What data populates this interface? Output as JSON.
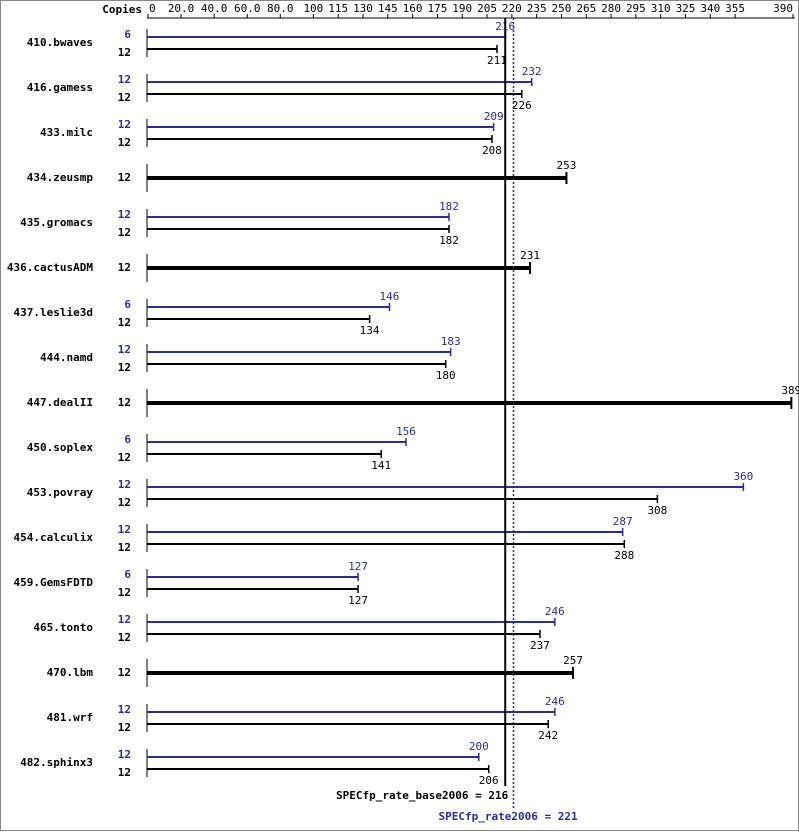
{
  "chart_data": {
    "type": "bar",
    "copies_title": "Copies",
    "categories": [
      "410.bwaves",
      "416.gamess",
      "433.milc",
      "434.zeusmp",
      "435.gromacs",
      "436.cactusADM",
      "437.leslie3d",
      "444.namd",
      "447.dealII",
      "450.soplex",
      "453.povray",
      "454.calculix",
      "459.GemsFDTD",
      "465.tonto",
      "470.lbm",
      "481.wrf",
      "482.sphinx3"
    ],
    "copies_peak": [
      6,
      12,
      12,
      null,
      12,
      null,
      6,
      12,
      null,
      6,
      12,
      12,
      6,
      12,
      null,
      12,
      12
    ],
    "copies_base": [
      12,
      12,
      12,
      12,
      12,
      12,
      12,
      12,
      12,
      12,
      12,
      12,
      12,
      12,
      12,
      12,
      12
    ],
    "series": [
      {
        "color": "#2b2b9f",
        "values": [
          216,
          232,
          209,
          null,
          182,
          null,
          146,
          183,
          null,
          156,
          360,
          287,
          127,
          246,
          null,
          246,
          200
        ]
      },
      {
        "color": "#000000",
        "values": [
          211,
          226,
          208,
          253,
          182,
          231,
          134,
          180,
          389,
          141,
          308,
          288,
          127,
          237,
          257,
          242,
          206
        ]
      }
    ],
    "xlim": [
      0,
      390
    ],
    "xticks": [
      0,
      {
        "value": 20,
        "label": "20.0"
      },
      {
        "value": 40,
        "label": "40.0"
      },
      {
        "value": 60,
        "label": "60.0"
      },
      {
        "value": 80,
        "label": "80.0"
      },
      100,
      115,
      130,
      145,
      160,
      175,
      190,
      205,
      220,
      235,
      250,
      265,
      280,
      295,
      310,
      325,
      340,
      355,
      390
    ],
    "reference_lines": [
      {
        "label": "SPECfp_rate_base2006 = 216",
        "value": 216,
        "color": "#000000"
      },
      {
        "label": "SPECfp_rate2006 = 221",
        "value": 221,
        "color": "#2b2b9f"
      }
    ]
  }
}
